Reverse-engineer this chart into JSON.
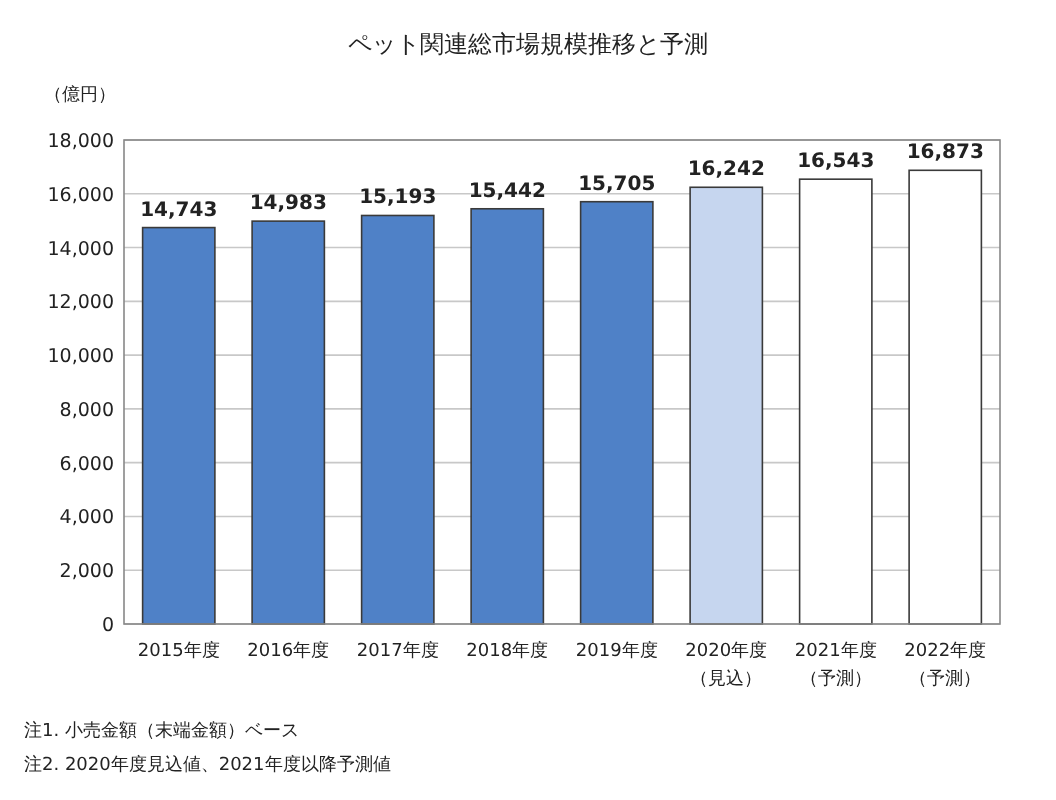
{
  "chart_data": {
    "type": "bar",
    "title": "ペット関連総市場規模推移と予測",
    "ylabel": "（億円）",
    "categories": [
      "2015年度",
      "2016年度",
      "2017年度",
      "2018年度",
      "2019年度",
      "2020年度（見込）",
      "2021年度（予測）",
      "2022年度（予測）"
    ],
    "values": [
      14743,
      14983,
      15193,
      15442,
      15705,
      16242,
      16543,
      16873
    ],
    "colors": [
      "#4f81c7",
      "#4f81c7",
      "#4f81c7",
      "#4f81c7",
      "#4f81c7",
      "#c6d6ef",
      "#ffffff",
      "#ffffff"
    ],
    "value_labels": [
      "14,743",
      "14,983",
      "15,193",
      "15,442",
      "15,705",
      "16,242",
      "16,543",
      "16,873"
    ],
    "ylim": [
      0,
      18000
    ],
    "yticks": [
      0,
      {
        "value": 2000,
        "label": "2,000"
      },
      {
        "value": 4000,
        "label": "4,000"
      },
      {
        "value": 6000,
        "label": "6,000"
      },
      {
        "value": 8000,
        "label": "8,000"
      },
      {
        "value": 10000,
        "label": "10,000"
      },
      {
        "value": 12000,
        "label": "12,000"
      },
      {
        "value": 14000,
        "label": "14,000"
      },
      {
        "value": 16000,
        "label": "16,000"
      },
      {
        "value": 18000,
        "label": "18,000"
      }
    ],
    "grid": "y",
    "annotations": [
      "注1. 小売金額（末端金額）ベース",
      "注2. 2020年度見込値、2021年度以降予測値"
    ]
  }
}
